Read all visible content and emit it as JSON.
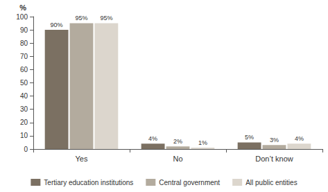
{
  "chart_data": {
    "type": "bar",
    "y_label": "%",
    "categories": [
      "Yes",
      "No",
      "Don’t know"
    ],
    "series": [
      {
        "name": "Tertiary education institutions",
        "color": "#7b7062",
        "values": [
          90,
          4,
          5
        ],
        "value_labels": [
          "90%",
          "4%",
          "5%"
        ]
      },
      {
        "name": "Central government",
        "color": "#b3ab9e",
        "values": [
          95,
          2,
          3
        ],
        "value_labels": [
          "95%",
          "2%",
          "3%"
        ]
      },
      {
        "name": "All public entities",
        "color": "#dcd6cd",
        "values": [
          95,
          1,
          4
        ],
        "value_labels": [
          "95%",
          "1%",
          "4%"
        ]
      }
    ],
    "ylim": [
      0,
      100
    ],
    "yticks": [
      0,
      10,
      20,
      30,
      40,
      50,
      60,
      70,
      80,
      90,
      100
    ],
    "grid": false,
    "legend": "bottom",
    "data_labels": true
  }
}
